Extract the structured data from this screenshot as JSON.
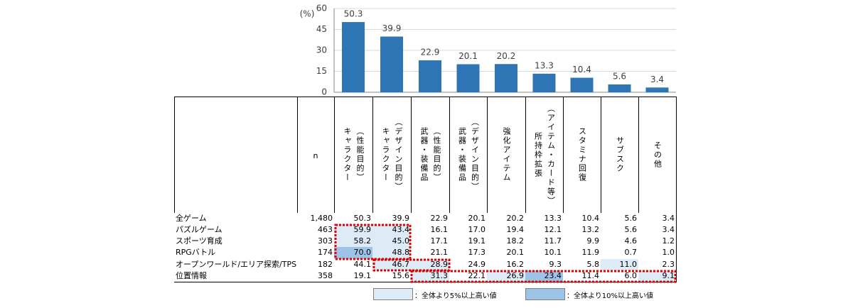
{
  "chart_data": {
    "type": "bar",
    "y_label": "(%)",
    "color": "#2e75b6",
    "values": [
      50.3,
      39.9,
      22.9,
      20.1,
      20.2,
      13.3,
      10.4,
      5.6,
      3.4
    ],
    "ylim": [
      0,
      60
    ],
    "yticks": [
      0,
      15,
      30,
      45,
      60
    ],
    "grid": true
  },
  "table": {
    "header": [
      "n",
      "（性能目的）\nキャラクター",
      "（デザイン目的）\nキャラクター",
      "（性能目的）\n武器・装備品",
      "（デザイン目的）\n武器・装備品",
      "強化アイテム",
      "（アイテム・カード等）\n所持枠拡張",
      "スタミナ回復",
      "サブスク",
      "その他"
    ],
    "rows": [
      [
        "全ゲーム",
        "1,480",
        "50.3",
        "39.9",
        "22.9",
        "20.1",
        "20.2",
        "13.3",
        "10.4",
        "5.6",
        "3.4"
      ],
      [
        "パズルゲーム",
        "463",
        "59.9",
        "43.4",
        "16.1",
        "17.0",
        "19.4",
        "12.1",
        "13.2",
        "5.6",
        "3.4"
      ],
      [
        "スポーツ育成",
        "303",
        "58.2",
        "45.0",
        "17.1",
        "19.1",
        "18.2",
        "11.7",
        "9.9",
        "4.6",
        "1.2"
      ],
      [
        "RPGバトル",
        "174",
        "70.0",
        "48.8",
        "21.1",
        "17.3",
        "20.1",
        "10.1",
        "11.9",
        "0.7",
        "1.0"
      ],
      [
        "オープンワールド/エリア探索/TPS",
        "182",
        "44.1",
        "46.7",
        "28.9",
        "24.9",
        "16.2",
        "9.3",
        "5.8",
        "11.0",
        "2.3"
      ],
      [
        "位置情報",
        "358",
        "19.1",
        "15.6",
        "31.3",
        "22.1",
        "26.9",
        "23.4",
        "11.4",
        "6.0",
        "9.1"
      ]
    ],
    "highlight": [
      [
        0,
        0,
        0,
        0,
        0,
        0,
        0,
        0,
        0
      ],
      [
        1,
        1,
        0,
        0,
        0,
        0,
        0,
        0,
        0
      ],
      [
        1,
        1,
        0,
        0,
        0,
        0,
        0,
        0,
        0
      ],
      [
        2,
        1,
        0,
        0,
        0,
        0,
        0,
        0,
        0
      ],
      [
        0,
        1,
        1,
        0,
        0,
        0,
        0,
        1,
        0
      ],
      [
        0,
        0,
        1,
        0,
        1,
        2,
        0,
        0,
        1
      ]
    ],
    "highlight_colors": [
      "#ffffff",
      "#ddebf7",
      "#9dc3e6"
    ],
    "legend": [
      "：全体より5%以上高い値",
      "：全体より10%以上高い値"
    ]
  }
}
